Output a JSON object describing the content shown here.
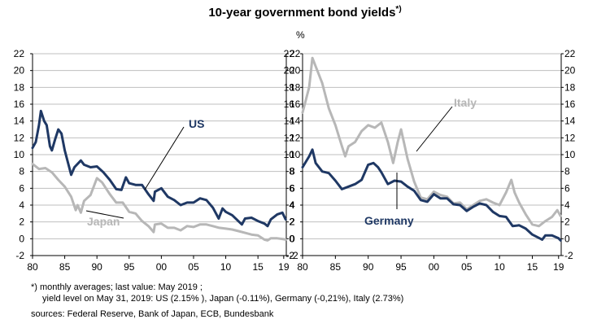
{
  "title": "10-year government bond yields",
  "title_sup": "*)",
  "unit_label": "%",
  "footnote_line1": "*) monthly averages; last value: May 2019 ;",
  "footnote_line2": "yield level on May 31, 2019: US (2.15% ), Japan (-0.11%), Germany (-0,21%), Italy (2.73%)",
  "sources": "sources: Federal Reserve, Bank of Japan, ECB, Bundesbank",
  "colors": {
    "dark_series": "#1f3864",
    "light_series": "#b7b7b7",
    "grid": "#bfbfbf"
  },
  "chart_data": [
    {
      "type": "line",
      "y_ticks": [
        "-2",
        "0",
        "2",
        "4",
        "6",
        "8",
        "10",
        "12",
        "14",
        "16",
        "18",
        "20",
        "22"
      ],
      "ylim": [
        -2,
        22
      ],
      "x_ticks": [
        "80",
        "85",
        "90",
        "95",
        "00",
        "05",
        "10",
        "15",
        "19"
      ],
      "xlim": [
        1980,
        2019.4
      ],
      "grid": true,
      "series": [
        {
          "name": "US",
          "color": "#1f3864",
          "x": [
            1980,
            1980.5,
            1981,
            1981.3,
            1981.8,
            1982.2,
            1982.7,
            1983,
            1983.5,
            1984,
            1984.5,
            1985,
            1986,
            1986.5,
            1987.5,
            1988,
            1989,
            1990,
            1991,
            1992,
            1993,
            1993.8,
            1994.5,
            1995,
            1996,
            1997,
            1998,
            1998.8,
            1999,
            2000,
            2001,
            2002,
            2003,
            2004,
            2005,
            2006,
            2007,
            2008,
            2008.9,
            2009.5,
            2010,
            2011,
            2012.5,
            2013,
            2014,
            2015,
            2016,
            2016.5,
            2017,
            2018,
            2018.8,
            2019.3
          ],
          "y": [
            10.8,
            11.5,
            13.5,
            15.2,
            14.0,
            13.5,
            11.0,
            10.5,
            11.8,
            13.0,
            12.5,
            10.5,
            7.6,
            8.5,
            9.3,
            8.8,
            8.5,
            8.6,
            7.9,
            7.0,
            5.9,
            5.8,
            7.3,
            6.6,
            6.4,
            6.4,
            5.3,
            4.5,
            5.6,
            6.0,
            5.0,
            4.6,
            4.0,
            4.3,
            4.3,
            4.8,
            4.6,
            3.7,
            2.4,
            3.6,
            3.2,
            2.8,
            1.7,
            2.4,
            2.5,
            2.1,
            1.8,
            1.5,
            2.3,
            2.9,
            3.1,
            2.3
          ]
        },
        {
          "name": "Japan",
          "color": "#b7b7b7",
          "x": [
            1980,
            1981,
            1982,
            1983,
            1984,
            1985,
            1986,
            1986.7,
            1987,
            1987.5,
            1988,
            1989,
            1990,
            1990.8,
            1992,
            1993,
            1994,
            1995,
            1996,
            1997,
            1998,
            1998.8,
            1999,
            2000,
            2001,
            2002,
            2003,
            2004,
            2005,
            2006,
            2007,
            2008,
            2009,
            2010,
            2011,
            2012,
            2013,
            2014,
            2015,
            2016,
            2016.5,
            2017,
            2018,
            2019,
            2019.3
          ],
          "y": [
            8.9,
            8.3,
            8.4,
            7.9,
            7.0,
            6.2,
            5.0,
            3.4,
            4.0,
            3.1,
            4.5,
            5.2,
            7.2,
            6.7,
            5.3,
            4.3,
            4.3,
            3.2,
            3.0,
            2.1,
            1.5,
            0.8,
            1.7,
            1.8,
            1.3,
            1.3,
            1.0,
            1.5,
            1.4,
            1.7,
            1.7,
            1.5,
            1.3,
            1.2,
            1.1,
            0.9,
            0.7,
            0.5,
            0.4,
            -0.1,
            -0.2,
            0.05,
            0.05,
            -0.05,
            -0.1
          ]
        }
      ]
    },
    {
      "type": "line",
      "y_ticks": [
        "-2",
        "0",
        "2",
        "4",
        "6",
        "8",
        "10",
        "12",
        "14",
        "16",
        "18",
        "20",
        "22"
      ],
      "ylim": [
        -2,
        22
      ],
      "x_ticks": [
        "80",
        "85",
        "90",
        "95",
        "00",
        "05",
        "10",
        "15",
        "19"
      ],
      "xlim": [
        1980,
        2019.4
      ],
      "grid": true,
      "series": [
        {
          "name": "Italy",
          "color": "#b7b7b7",
          "x": [
            1980,
            1981,
            1981.5,
            1982,
            1983,
            1984,
            1985,
            1986,
            1986.5,
            1987,
            1988,
            1989,
            1990,
            1991,
            1992,
            1993,
            1993.8,
            1994.5,
            1995,
            1996,
            1997,
            1998,
            1999,
            2000,
            2001,
            2002,
            2003,
            2004,
            2005,
            2006,
            2007,
            2008,
            2009,
            2010,
            2011,
            2011.8,
            2012.3,
            2013,
            2014,
            2015,
            2016,
            2017,
            2018,
            2018.8,
            2019.3
          ],
          "y": [
            15.0,
            18.0,
            21.5,
            20.5,
            18.5,
            15.5,
            13.5,
            11.0,
            9.8,
            11.0,
            11.5,
            12.8,
            13.5,
            13.2,
            13.8,
            11.5,
            9.0,
            11.5,
            13.0,
            9.5,
            6.8,
            4.9,
            4.7,
            5.6,
            5.2,
            5.0,
            4.2,
            4.3,
            3.5,
            4.0,
            4.5,
            4.7,
            4.3,
            4.0,
            5.5,
            7.0,
            5.5,
            4.3,
            2.9,
            1.7,
            1.5,
            2.1,
            2.6,
            3.4,
            2.7
          ]
        },
        {
          "name": "Germany",
          "color": "#1f3864",
          "x": [
            1980,
            1981,
            1981.5,
            1982,
            1983,
            1984,
            1985,
            1986,
            1987,
            1988,
            1989,
            1990,
            1990.8,
            1991.5,
            1992,
            1993,
            1994,
            1995,
            1996,
            1997,
            1998,
            1999,
            2000,
            2001,
            2002,
            2003,
            2004,
            2005,
            2006,
            2007,
            2008,
            2009,
            2010,
            2011,
            2012,
            2013,
            2014,
            2015,
            2016,
            2016.5,
            2017,
            2018,
            2019,
            2019.3
          ],
          "y": [
            8.5,
            9.8,
            10.6,
            9.0,
            8.0,
            7.8,
            6.9,
            5.9,
            6.2,
            6.5,
            7.0,
            8.8,
            9.0,
            8.5,
            7.9,
            6.5,
            6.9,
            6.8,
            6.2,
            5.7,
            4.6,
            4.4,
            5.3,
            4.8,
            4.8,
            4.1,
            4.0,
            3.3,
            3.8,
            4.2,
            4.0,
            3.2,
            2.7,
            2.6,
            1.5,
            1.6,
            1.2,
            0.5,
            0.1,
            -0.1,
            0.4,
            0.4,
            0.05,
            -0.2
          ]
        }
      ]
    }
  ],
  "annotations": [
    {
      "label": "US"
    },
    {
      "label": "Japan"
    },
    {
      "label": "Italy"
    },
    {
      "label": "Germany"
    }
  ]
}
